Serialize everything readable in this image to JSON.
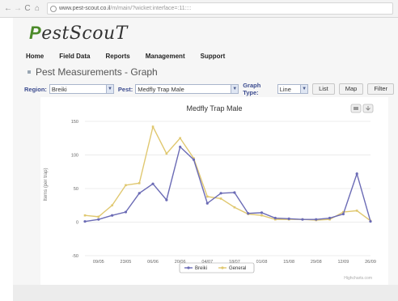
{
  "browser": {
    "back_icon": "back-arrow-icon",
    "forward_icon": "forward-arrow-icon",
    "reload_icon": "reload-icon",
    "home_icon": "home-icon",
    "url_host": "www.pest-scout.co.il",
    "url_path": "/m/main/?wicket:interface=:11::::"
  },
  "app": {
    "logo_p": "P",
    "logo_rest": "estScouT"
  },
  "menu": {
    "items": [
      "Home",
      "Field Data",
      "Reports",
      "Management",
      "Support"
    ]
  },
  "page": {
    "title": "Pest Measurements - Graph"
  },
  "toolbar": {
    "region_label": "Region:",
    "region_value": "Breiki",
    "pest_label": "Pest:",
    "pest_value": "Medfly Trap Male",
    "graph_type_label": "Graph Type:",
    "graph_type_value": "Line",
    "list_label": "List",
    "map_label": "Map",
    "filter_label": "Filter"
  },
  "chart_data": {
    "type": "line",
    "title": "Medfly Trap Male",
    "ylabel": "Items (per trap)",
    "ylim": [
      -50,
      150
    ],
    "yticks": [
      150,
      100,
      50,
      0,
      -50
    ],
    "x_tick_labels": [
      "09/05",
      "23/05",
      "06/06",
      "20/06",
      "04/07",
      "18/07",
      "01/08",
      "15/08",
      "29/08",
      "12/09",
      "26/09"
    ],
    "x_range": [
      0,
      21
    ],
    "series": [
      {
        "name": "Breiki",
        "color": "#6b6bb5",
        "x": [
          0,
          1,
          2,
          3,
          4,
          5,
          6,
          7,
          8,
          9,
          10,
          11,
          12,
          13,
          14,
          15,
          16,
          17,
          18,
          19,
          20,
          21
        ],
        "values": [
          1,
          4,
          10,
          15,
          43,
          57,
          33,
          112,
          93,
          28,
          43,
          44,
          13,
          14,
          6,
          5,
          4,
          4,
          6,
          12,
          72,
          1
        ]
      },
      {
        "name": "General",
        "color": "#e0c870",
        "x": [
          0,
          1,
          2,
          3,
          4,
          5,
          6,
          7,
          8,
          9,
          10,
          11,
          12,
          13,
          14,
          15,
          16,
          17,
          18,
          19,
          20,
          21
        ],
        "values": [
          10,
          8,
          25,
          55,
          58,
          142,
          102,
          125,
          95,
          38,
          35,
          22,
          12,
          10,
          4,
          4,
          4,
          3,
          4,
          15,
          17,
          2
        ]
      }
    ],
    "legend_position": "bottom-center",
    "credit": "Highcharts.com",
    "print_icon": "print-icon",
    "export_icon": "export-icon"
  }
}
